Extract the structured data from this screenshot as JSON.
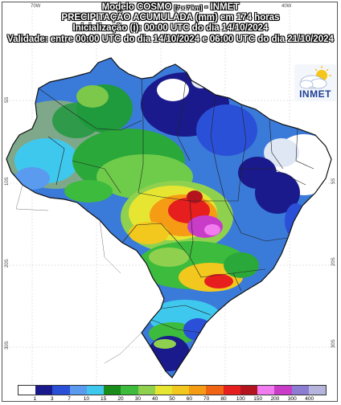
{
  "header": {
    "line1_model": "Modelo COSMO",
    "line1_res": "[7 x 7 km]",
    "line1_org": "- INMET",
    "line2": "PRECIPITAÇÃO ACUMULADA (mm) em 174 horas",
    "line3": "Inicialização (i): 00:00 UTC do dia 14/10/2024",
    "line4": "Validade: entre 00:00 UTC do dia 14/10/2024 e 06:00 UTC do dia 21/10/2024"
  },
  "axes": {
    "top_lon": "70W",
    "top_lon_right": "40W",
    "left_lats": [
      "5S",
      "10S",
      "20S",
      "30S"
    ],
    "right_lats": [
      "5S",
      "20S",
      "30S"
    ]
  },
  "logo": {
    "text": "INMET",
    "icon": "sun-cloud-icon"
  },
  "legend": {
    "unit": "mm",
    "levels": [
      "1",
      "3",
      "7",
      "10",
      "15",
      "20",
      "30",
      "40",
      "50",
      "60",
      "70",
      "80",
      "100",
      "150",
      "200",
      "300",
      "400"
    ],
    "colors": [
      "#ffffff",
      "#1a1a8c",
      "#2b50d8",
      "#5a9bf0",
      "#3fc8ee",
      "#1a8c1a",
      "#3cbb3c",
      "#8fd14f",
      "#e6e632",
      "#f2c81e",
      "#f59b14",
      "#f06414",
      "#e61e1e",
      "#b4141e",
      "#f07cf0",
      "#c83cc8",
      "#8c7cd2",
      "#b4b4dc"
    ]
  }
}
